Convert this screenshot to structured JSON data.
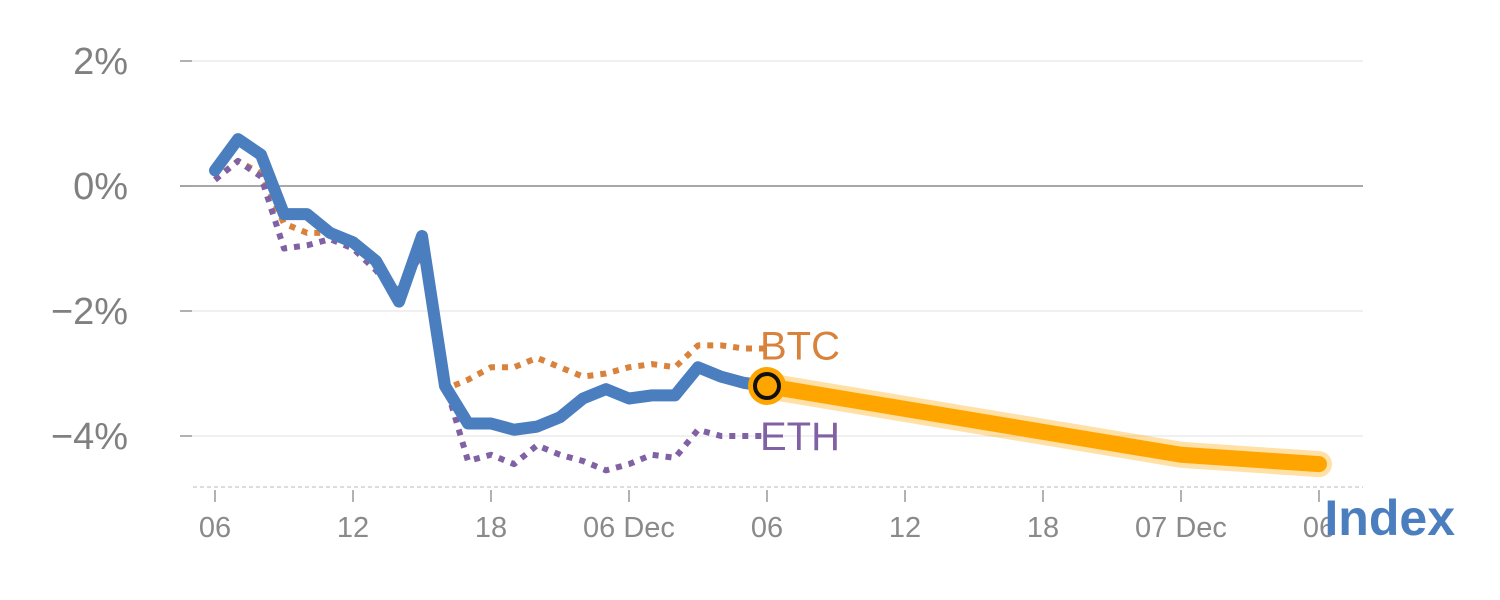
{
  "chart_data": {
    "type": "line",
    "y_unit": "%",
    "ylim": [
      -4.8,
      2.2
    ],
    "y_ticks": [
      {
        "value": 2,
        "label": "2%"
      },
      {
        "value": 0,
        "label": "0%"
      },
      {
        "value": -2,
        "label": "−2%"
      },
      {
        "value": -4,
        "label": "−4%"
      }
    ],
    "x_ticks": [
      {
        "hour": 0,
        "label": "06"
      },
      {
        "hour": 6,
        "label": "12"
      },
      {
        "hour": 12,
        "label": "18"
      },
      {
        "hour": 18,
        "label": "06 Dec"
      },
      {
        "hour": 24,
        "label": "06"
      },
      {
        "hour": 30,
        "label": "12"
      },
      {
        "hour": 36,
        "label": "18"
      },
      {
        "hour": 42,
        "label": "07 Dec"
      },
      {
        "hour": 48,
        "label": "06"
      }
    ],
    "grid": true,
    "series": [
      {
        "name": "Index",
        "color": "#4a7ebf",
        "style": "solid",
        "x": [
          0,
          1,
          2,
          3,
          4,
          5,
          6,
          7,
          8,
          9,
          10,
          11,
          12,
          13,
          14,
          15,
          16,
          17,
          18,
          19,
          20,
          21,
          22,
          23,
          24
        ],
        "y": [
          0.25,
          0.75,
          0.5,
          -0.45,
          -0.45,
          -0.75,
          -0.9,
          -1.2,
          -1.85,
          -0.8,
          -3.2,
          -3.8,
          -3.8,
          -3.9,
          -3.85,
          -3.7,
          -3.4,
          -3.25,
          -3.4,
          -3.35,
          -3.35,
          -2.9,
          -3.05,
          -3.15,
          -3.2
        ]
      },
      {
        "name": "BTC",
        "color": "#d9823b",
        "style": "dotted",
        "x": [
          0,
          1,
          2,
          3,
          4,
          5,
          6,
          7,
          8,
          9,
          10,
          11,
          12,
          13,
          14,
          15,
          16,
          17,
          18,
          19,
          20,
          21,
          22,
          23,
          24
        ],
        "y": [
          0.1,
          0.4,
          0.2,
          -0.6,
          -0.75,
          -0.75,
          -0.85,
          -1.2,
          -1.7,
          -1.0,
          -3.25,
          -3.1,
          -2.9,
          -2.9,
          -2.75,
          -2.9,
          -3.05,
          -3.0,
          -2.9,
          -2.85,
          -2.9,
          -2.55,
          -2.55,
          -2.6,
          -2.6
        ]
      },
      {
        "name": "ETH",
        "color": "#8061a4",
        "style": "dotted",
        "x": [
          0,
          1,
          2,
          3,
          4,
          5,
          6,
          7,
          8,
          9,
          10,
          11,
          12,
          13,
          14,
          15,
          16,
          17,
          18,
          19,
          20,
          21,
          22,
          23,
          24
        ],
        "y": [
          0.1,
          0.4,
          0.15,
          -1.0,
          -0.95,
          -0.85,
          -1.0,
          -1.35,
          -1.8,
          -1.05,
          -3.15,
          -4.4,
          -4.3,
          -4.45,
          -4.15,
          -4.3,
          -4.4,
          -4.55,
          -4.45,
          -4.3,
          -4.35,
          -3.9,
          -4.0,
          -4.0,
          -4.0
        ]
      },
      {
        "name": "",
        "color": "#ffa500",
        "style": "forecast",
        "x": [
          24,
          42,
          48
        ],
        "y": [
          -3.2,
          -4.3,
          -4.45
        ]
      }
    ],
    "current_point": {
      "x": 24,
      "y": -3.2
    },
    "labels": {
      "btc": "BTC",
      "eth": "ETH",
      "index": "Index"
    }
  }
}
